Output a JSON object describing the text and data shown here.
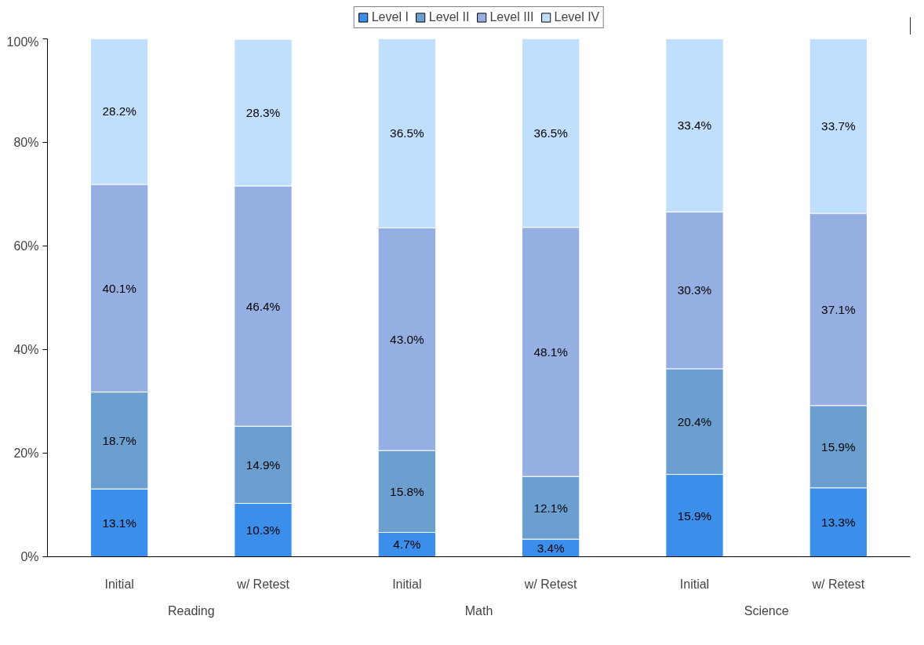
{
  "chart_data": {
    "type": "bar",
    "stacked": true,
    "legend": "top",
    "grid": false,
    "categories": [
      "Initial",
      "w/ Retest",
      "Initial",
      "w/ Retest",
      "Initial",
      "w/ Retest"
    ],
    "annotations": [
      "Reading",
      "Math",
      "Science"
    ],
    "ylim": [
      0,
      100
    ],
    "yticks": [
      {
        "value": 0,
        "label": "0%"
      },
      {
        "value": 20,
        "label": "20%"
      },
      {
        "value": 40,
        "label": "40%"
      },
      {
        "value": 60,
        "label": "60%"
      },
      {
        "value": 80,
        "label": "80%"
      },
      {
        "value": 100,
        "label": "100%"
      }
    ],
    "series": [
      {
        "name": "Level I",
        "color": "#3b8eea",
        "values": [
          13.1,
          10.3,
          4.7,
          3.4,
          15.9,
          13.3
        ],
        "value_labels": [
          "13.1%",
          "10.3%",
          "4.7%",
          "3.4%",
          "15.9%",
          "13.3%"
        ]
      },
      {
        "name": "Level II",
        "color": "#6a9fd0",
        "values": [
          18.7,
          14.9,
          15.8,
          12.1,
          20.4,
          15.9
        ],
        "value_labels": [
          "18.7%",
          "14.9%",
          "15.8%",
          "12.1%",
          "20.4%",
          "15.9%"
        ]
      },
      {
        "name": "Level III",
        "color": "#95afe3",
        "values": [
          40.1,
          46.4,
          43.0,
          48.1,
          30.3,
          37.1
        ],
        "value_labels": [
          "40.1%",
          "46.4%",
          "43.0%",
          "48.1%",
          "30.3%",
          "37.1%"
        ]
      },
      {
        "name": "Level IV",
        "color": "#bfdffd",
        "values": [
          28.2,
          28.3,
          36.5,
          36.5,
          33.4,
          33.7
        ],
        "value_labels": [
          "28.2%",
          "28.3%",
          "36.5%",
          "36.5%",
          "33.4%",
          "33.7%"
        ]
      }
    ]
  }
}
